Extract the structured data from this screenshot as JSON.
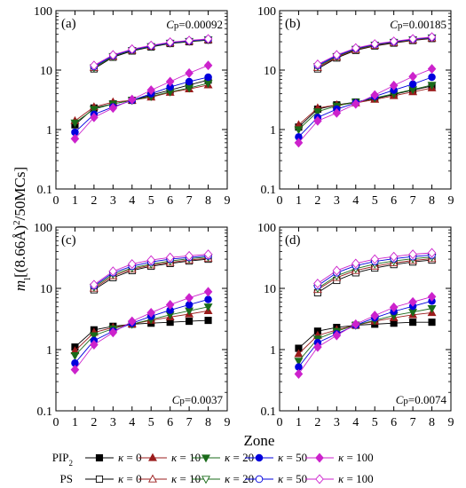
{
  "figure": {
    "xlabel": "Zone",
    "ylabel_main": "m",
    "ylabel_sub": "l",
    "ylabel_rest": "[(8.66Å)",
    "ylabel_sup": "2",
    "ylabel_tail": "/50MCs]"
  },
  "legend": {
    "groups": [
      {
        "label_main": "PIP",
        "label_sub": "2",
        "filled": true
      },
      {
        "label_main": "PS",
        "label_sub": "",
        "filled": false
      }
    ],
    "kappa_symbol": "κ",
    "entries": [
      {
        "kappa": "0",
        "marker": "square",
        "color": "#000000"
      },
      {
        "kappa": "10",
        "marker": "triangle-up",
        "color": "#9b1c1c"
      },
      {
        "kappa": "20",
        "marker": "triangle-down",
        "color": "#1a6b1a"
      },
      {
        "kappa": "50",
        "marker": "circle",
        "color": "#0000dd"
      },
      {
        "kappa": "100",
        "marker": "diamond",
        "color": "#cc22cc"
      }
    ]
  },
  "chart_data": [
    {
      "type": "line",
      "panel": "(a)",
      "cp_label": "Cp=0.00092",
      "cp_position": "top-right",
      "x": [
        1,
        2,
        3,
        4,
        5,
        6,
        7,
        8
      ],
      "xlim": [
        0,
        9
      ],
      "ylim": [
        0.1,
        100
      ],
      "yscale": "log",
      "xticks": [
        "0",
        "1",
        "2",
        "3",
        "4",
        "5",
        "6",
        "7",
        "8",
        "9"
      ],
      "yticks": [
        "0.1",
        "1",
        "10",
        "100"
      ],
      "series": [
        {
          "group": "PIP2",
          "kappa": "0",
          "values": [
            1.2,
            2.3,
            2.7,
            3.1,
            3.8,
            4.6,
            5.6,
            6.8
          ]
        },
        {
          "group": "PIP2",
          "kappa": "10",
          "values": [
            1.4,
            2.4,
            2.9,
            3.1,
            3.5,
            4.2,
            4.8,
            5.6
          ]
        },
        {
          "group": "PIP2",
          "kappa": "20",
          "values": [
            1.3,
            2.2,
            2.7,
            3.1,
            3.6,
            4.3,
            5.0,
            6.0
          ]
        },
        {
          "group": "PIP2",
          "kappa": "50",
          "values": [
            0.9,
            1.8,
            2.4,
            3.1,
            4.0,
            5.2,
            6.4,
            7.6
          ]
        },
        {
          "group": "PIP2",
          "kappa": "100",
          "values": [
            0.7,
            1.6,
            2.3,
            3.2,
            4.6,
            6.4,
            8.9,
            12.0
          ]
        },
        {
          "group": "PS",
          "kappa": "0",
          "values": [
            null,
            10.5,
            16.5,
            21.0,
            24.5,
            28.0,
            30.0,
            32.0
          ]
        },
        {
          "group": "PS",
          "kappa": "10",
          "values": [
            null,
            11.0,
            17.0,
            21.5,
            25.0,
            28.5,
            30.5,
            32.5
          ]
        },
        {
          "group": "PS",
          "kappa": "20",
          "values": [
            null,
            11.0,
            17.0,
            21.5,
            25.0,
            28.5,
            30.5,
            32.5
          ]
        },
        {
          "group": "PS",
          "kappa": "50",
          "values": [
            null,
            11.5,
            17.5,
            22.0,
            25.5,
            29.0,
            31.0,
            33.0
          ]
        },
        {
          "group": "PS",
          "kappa": "100",
          "values": [
            null,
            12.0,
            18.0,
            22.5,
            26.0,
            29.5,
            31.5,
            33.5
          ]
        }
      ]
    },
    {
      "type": "line",
      "panel": "(b)",
      "cp_label": "Cp=0.00185",
      "cp_position": "top-right",
      "x": [
        1,
        2,
        3,
        4,
        5,
        6,
        7,
        8
      ],
      "xlim": [
        0,
        9
      ],
      "ylim": [
        0.1,
        100
      ],
      "yscale": "log",
      "xticks": [
        "0",
        "1",
        "2",
        "3",
        "4",
        "5",
        "6",
        "7",
        "8",
        "9"
      ],
      "yticks": [
        "0.1",
        "1",
        "10",
        "100"
      ],
      "series": [
        {
          "group": "PIP2",
          "kappa": "0",
          "values": [
            1.1,
            2.2,
            2.6,
            2.9,
            3.3,
            3.9,
            4.6,
            5.4
          ]
        },
        {
          "group": "PIP2",
          "kappa": "10",
          "values": [
            1.2,
            2.3,
            2.6,
            2.8,
            3.2,
            3.7,
            4.3,
            5.0
          ]
        },
        {
          "group": "PIP2",
          "kappa": "20",
          "values": [
            1.0,
            2.0,
            2.5,
            2.9,
            3.4,
            4.0,
            4.7,
            5.6
          ]
        },
        {
          "group": "PIP2",
          "kappa": "50",
          "values": [
            0.75,
            1.6,
            2.2,
            2.8,
            3.6,
            4.6,
            5.8,
            7.6
          ]
        },
        {
          "group": "PIP2",
          "kappa": "100",
          "values": [
            0.6,
            1.4,
            1.9,
            2.7,
            3.8,
            5.5,
            7.8,
            10.5
          ]
        },
        {
          "group": "PS",
          "kappa": "0",
          "values": [
            null,
            10.5,
            16.0,
            21.5,
            25.5,
            28.5,
            31.5,
            34.0
          ]
        },
        {
          "group": "PS",
          "kappa": "10",
          "values": [
            null,
            11.0,
            16.5,
            22.0,
            26.0,
            29.0,
            32.0,
            34.5
          ]
        },
        {
          "group": "PS",
          "kappa": "20",
          "values": [
            null,
            11.5,
            17.0,
            22.5,
            26.5,
            29.5,
            32.5,
            35.0
          ]
        },
        {
          "group": "PS",
          "kappa": "50",
          "values": [
            null,
            12.0,
            17.5,
            23.0,
            27.0,
            30.0,
            33.0,
            35.5
          ]
        },
        {
          "group": "PS",
          "kappa": "100",
          "values": [
            null,
            12.5,
            18.0,
            23.5,
            27.5,
            30.5,
            33.5,
            36.0
          ]
        }
      ]
    },
    {
      "type": "line",
      "panel": "(c)",
      "cp_label": "Cp=0.0037",
      "cp_position": "bottom-right",
      "x": [
        1,
        2,
        3,
        4,
        5,
        6,
        7,
        8
      ],
      "xlim": [
        0,
        9
      ],
      "ylim": [
        0.1,
        100
      ],
      "yscale": "log",
      "xticks": [
        "0",
        "1",
        "2",
        "3",
        "4",
        "5",
        "6",
        "7",
        "8",
        "9"
      ],
      "yticks": [
        "0.1",
        "1",
        "10",
        "100"
      ],
      "series": [
        {
          "group": "PIP2",
          "kappa": "0",
          "values": [
            1.1,
            2.1,
            2.4,
            2.6,
            2.7,
            2.8,
            2.9,
            3.0
          ]
        },
        {
          "group": "PIP2",
          "kappa": "10",
          "values": [
            0.95,
            1.9,
            2.3,
            2.6,
            3.0,
            3.4,
            3.8,
            4.3
          ]
        },
        {
          "group": "PIP2",
          "kappa": "20",
          "values": [
            0.8,
            1.7,
            2.2,
            2.6,
            3.1,
            3.7,
            4.3,
            5.0
          ]
        },
        {
          "group": "PIP2",
          "kappa": "50",
          "values": [
            0.6,
            1.4,
            2.0,
            2.7,
            3.5,
            4.4,
            5.4,
            6.6
          ]
        },
        {
          "group": "PIP2",
          "kappa": "100",
          "values": [
            0.47,
            1.2,
            1.9,
            2.9,
            4.0,
            5.4,
            7.0,
            8.8
          ]
        },
        {
          "group": "PS",
          "kappa": "0",
          "values": [
            null,
            9.5,
            15.0,
            19.5,
            23.0,
            25.5,
            28.0,
            30.0
          ]
        },
        {
          "group": "PS",
          "kappa": "10",
          "values": [
            null,
            10.0,
            16.0,
            20.5,
            24.0,
            26.5,
            29.0,
            31.0
          ]
        },
        {
          "group": "PS",
          "kappa": "20",
          "values": [
            null,
            10.5,
            17.0,
            21.5,
            25.0,
            28.0,
            30.5,
            32.5
          ]
        },
        {
          "group": "PS",
          "kappa": "50",
          "values": [
            null,
            11.0,
            18.0,
            23.0,
            27.0,
            30.0,
            32.0,
            34.0
          ]
        },
        {
          "group": "PS",
          "kappa": "100",
          "values": [
            null,
            11.5,
            19.0,
            25.0,
            29.0,
            32.0,
            34.0,
            36.0
          ]
        }
      ]
    },
    {
      "type": "line",
      "panel": "(d)",
      "cp_label": "Cp=0.0074",
      "cp_position": "bottom-right",
      "x": [
        1,
        2,
        3,
        4,
        5,
        6,
        7,
        8
      ],
      "xlim": [
        0,
        9
      ],
      "ylim": [
        0.1,
        100
      ],
      "yscale": "log",
      "xticks": [
        "0",
        "1",
        "2",
        "3",
        "4",
        "5",
        "6",
        "7",
        "8",
        "9"
      ],
      "yticks": [
        "0.1",
        "1",
        "10",
        "100"
      ],
      "series": [
        {
          "group": "PIP2",
          "kappa": "0",
          "values": [
            1.05,
            2.0,
            2.3,
            2.5,
            2.6,
            2.7,
            2.8,
            2.8
          ]
        },
        {
          "group": "PIP2",
          "kappa": "10",
          "values": [
            0.85,
            1.7,
            2.1,
            2.5,
            2.9,
            3.3,
            3.7,
            4.0
          ]
        },
        {
          "group": "PIP2",
          "kappa": "20",
          "values": [
            0.65,
            1.5,
            2.0,
            2.5,
            3.0,
            3.6,
            4.1,
            4.7
          ]
        },
        {
          "group": "PIP2",
          "kappa": "50",
          "values": [
            0.52,
            1.3,
            1.8,
            2.5,
            3.3,
            4.2,
            5.1,
            6.2
          ]
        },
        {
          "group": "PIP2",
          "kappa": "100",
          "values": [
            0.4,
            1.1,
            1.7,
            2.6,
            3.6,
            4.9,
            6.0,
            7.3
          ]
        },
        {
          "group": "PS",
          "kappa": "0",
          "values": [
            null,
            8.5,
            13.5,
            18.0,
            21.5,
            24.5,
            27.0,
            29.0
          ]
        },
        {
          "group": "PS",
          "kappa": "10",
          "values": [
            null,
            9.5,
            15.0,
            19.5,
            23.0,
            26.0,
            28.5,
            30.5
          ]
        },
        {
          "group": "PS",
          "kappa": "20",
          "values": [
            null,
            10.0,
            16.0,
            21.0,
            25.0,
            28.0,
            30.5,
            32.5
          ]
        },
        {
          "group": "PS",
          "kappa": "50",
          "values": [
            null,
            11.0,
            18.0,
            23.5,
            27.5,
            30.5,
            33.0,
            35.0
          ]
        },
        {
          "group": "PS",
          "kappa": "100",
          "values": [
            null,
            12.0,
            19.5,
            25.5,
            30.0,
            33.0,
            36.0,
            38.0
          ]
        }
      ]
    }
  ]
}
